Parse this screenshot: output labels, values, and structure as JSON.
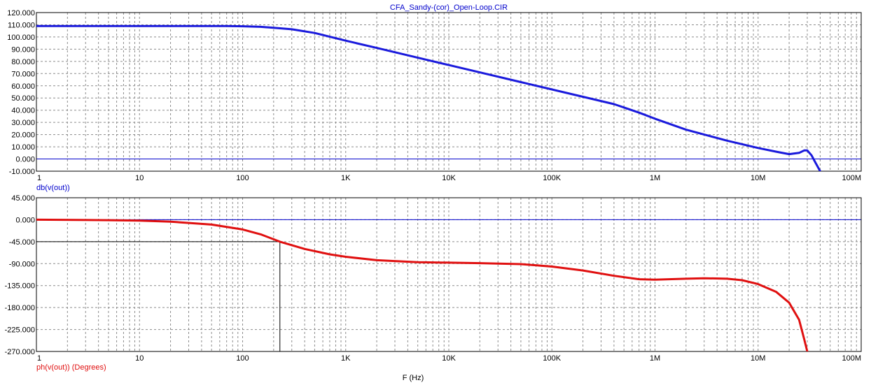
{
  "window_title": "CFA_Sandy-(cor)_Open-Loop.CIR",
  "x_axis_label": "F (Hz)",
  "colors": {
    "magnitude": "#1a1adc",
    "phase": "#e01010",
    "grid": "#8c8c8c",
    "frame": "#000000",
    "title": "#0000cc",
    "zero_line": "#0000cc",
    "cursor": "#000000"
  },
  "chart_data": [
    {
      "type": "line",
      "panel": "top",
      "title": "CFA_Sandy-(cor)_Open-Loop.CIR",
      "xlabel": "",
      "ylabel": "db(v(out))",
      "xscale": "log",
      "xlim": [
        1,
        100000000
      ],
      "ylim": [
        -10,
        120
      ],
      "x_ticks": [
        1,
        10,
        100,
        1000,
        10000,
        100000,
        1000000,
        10000000,
        100000000
      ],
      "x_tick_labels": [
        "1",
        "10",
        "100",
        "1K",
        "10K",
        "100K",
        "1M",
        "10M",
        "100M"
      ],
      "y_ticks": [
        -10,
        0,
        10,
        20,
        30,
        40,
        50,
        60,
        70,
        80,
        90,
        100,
        110,
        120
      ],
      "y_tick_labels": [
        "-10.000",
        "0.000",
        "10.000",
        "20.000",
        "30.000",
        "40.000",
        "50.000",
        "60.000",
        "70.000",
        "80.000",
        "90.000",
        "100.000",
        "110.000",
        "120.000"
      ],
      "grid": true,
      "zero_line": 0,
      "series": [
        {
          "name": "db(v(out))",
          "color": "#1a1adc",
          "x": [
            1,
            10,
            30,
            70,
            100,
            150,
            200,
            300,
            500,
            1000,
            2000,
            5000,
            10000,
            20000,
            50000,
            100000,
            200000,
            400000,
            700000,
            1000000,
            2000000,
            3000000,
            5000000,
            10000000,
            15000000,
            20000000,
            25000000,
            28000000,
            30000000,
            33000000,
            36000000,
            40000000
          ],
          "y": [
            109,
            109,
            109,
            109,
            108.8,
            108.3,
            107.6,
            106.3,
            103.3,
            97,
            91,
            83,
            77,
            71,
            63,
            57,
            51,
            45,
            38,
            33,
            24,
            20,
            15,
            9,
            6,
            4,
            5,
            7,
            7,
            3,
            -3,
            -10
          ]
        }
      ]
    },
    {
      "type": "line",
      "panel": "bottom",
      "xlabel": "F (Hz)",
      "ylabel": "ph(v(out)) (Degrees)",
      "xscale": "log",
      "xlim": [
        1,
        100000000
      ],
      "ylim": [
        -270,
        45
      ],
      "x_ticks": [
        1,
        10,
        100,
        1000,
        10000,
        100000,
        1000000,
        10000000,
        100000000
      ],
      "x_tick_labels": [
        "1",
        "10",
        "100",
        "1K",
        "10K",
        "100K",
        "1M",
        "10M",
        "100M"
      ],
      "y_ticks": [
        -270,
        -225,
        -180,
        -135,
        -90,
        -45,
        0,
        45
      ],
      "y_tick_labels": [
        "-270.000",
        "-225.000",
        "-180.000",
        "-135.000",
        "-90.000",
        "-45.000",
        "0.000",
        "45.000"
      ],
      "grid": true,
      "zero_line": 0,
      "cursor": {
        "x": 230,
        "y": -45
      },
      "series": [
        {
          "name": "ph(v(out)) (Degrees)",
          "color": "#e01010",
          "x": [
            1,
            5,
            10,
            20,
            50,
            100,
            150,
            230,
            400,
            700,
            1000,
            2000,
            5000,
            10000,
            20000,
            50000,
            100000,
            200000,
            400000,
            700000,
            1000000,
            2000000,
            3000000,
            5000000,
            7000000,
            10000000,
            15000000,
            20000000,
            25000000,
            28000000,
            30000000
          ],
          "y": [
            0,
            -1,
            -2,
            -4,
            -10,
            -20,
            -30,
            -45,
            -60,
            -71,
            -76,
            -83,
            -87,
            -88,
            -89,
            -91,
            -96,
            -104,
            -115,
            -122,
            -123,
            -121,
            -120,
            -121,
            -124,
            -132,
            -148,
            -170,
            -205,
            -245,
            -270
          ]
        }
      ]
    }
  ]
}
